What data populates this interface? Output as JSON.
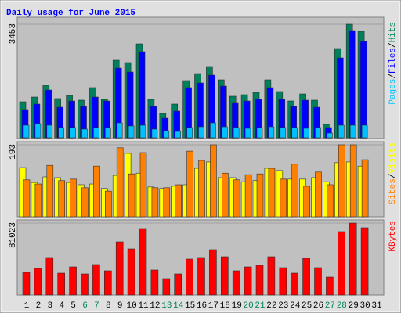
{
  "chart_data": [
    {
      "type": "bar",
      "title": "Daily usage for June 2015",
      "title_color": "#0000ff",
      "separator": "/",
      "ylim": [
        0,
        3453
      ],
      "yticks": [
        3453
      ],
      "series": [
        {
          "name": "Hits",
          "color": "#00805c",
          "values": [
            1095,
            1238,
            1595,
            1191,
            1286,
            1143,
            1524,
            1167,
            2357,
            2286,
            2857,
            1167,
            738,
            1024,
            1738,
            1952,
            2167,
            1762,
            1262,
            1309,
            1381,
            1762,
            1405,
            1119,
            1333,
            1143,
            405,
            2714,
            3453,
            3238,
            null
          ]
        },
        {
          "name": "Files",
          "color": "#0000ff",
          "values": [
            857,
            1024,
            1452,
            929,
            1119,
            952,
            1238,
            1119,
            2119,
            2000,
            2619,
            952,
            595,
            810,
            1524,
            1667,
            1905,
            1571,
            1071,
            1119,
            1167,
            1524,
            1167,
            952,
            1143,
            929,
            310,
            2429,
            3262,
            2929,
            null
          ]
        },
        {
          "name": "Pages",
          "color": "#00c0ff",
          "values": [
            381,
            429,
            381,
            310,
            310,
            262,
            310,
            310,
            452,
            357,
            381,
            262,
            214,
            190,
            310,
            333,
            452,
            333,
            310,
            286,
            310,
            333,
            310,
            310,
            286,
            310,
            143,
            381,
            381,
            381,
            null
          ]
        }
      ]
    },
    {
      "type": "bar",
      "separator": "/",
      "ylim": [
        0,
        193
      ],
      "yticks": [
        193
      ],
      "series": [
        {
          "name": "Visits",
          "color": "#ffff00",
          "values": [
            132,
            92,
            107,
            105,
            92,
            86,
            88,
            76,
            111,
            170,
            117,
            80,
            76,
            82,
            86,
            130,
            147,
            105,
            105,
            94,
            97,
            130,
            124,
            101,
            101,
            105,
            94,
            145,
            147,
            136,
            null
          ]
        },
        {
          "name": "Sites",
          "color": "#ff8000",
          "values": [
            99,
            88,
            138,
            97,
            101,
            78,
            136,
            69,
            185,
            115,
            172,
            78,
            78,
            86,
            176,
            151,
            193,
            117,
            99,
            113,
            115,
            130,
            101,
            141,
            82,
            120,
            86,
            193,
            193,
            153,
            null
          ]
        }
      ]
    },
    {
      "type": "bar",
      "ylim": [
        0,
        81023
      ],
      "yticks": [
        81023
      ],
      "categories": [
        "1",
        "2",
        "3",
        "4",
        "5",
        "6",
        "7",
        "8",
        "9",
        "10",
        "11",
        "12",
        "13",
        "14",
        "15",
        "16",
        "17",
        "18",
        "19",
        "20",
        "21",
        "22",
        "23",
        "24",
        "25",
        "26",
        "27",
        "28",
        "29",
        "30",
        "31"
      ],
      "category_colors": [
        "#000000",
        "#000000",
        "#000000",
        "#000000",
        "#000000",
        "#00805c",
        "#00805c",
        "#000000",
        "#000000",
        "#000000",
        "#000000",
        "#000000",
        "#00805c",
        "#00805c",
        "#000000",
        "#000000",
        "#000000",
        "#000000",
        "#000000",
        "#00805c",
        "#00805c",
        "#000000",
        "#000000",
        "#000000",
        "#000000",
        "#000000",
        "#00805c",
        "#00805c",
        "#000000",
        "#000000",
        "#000000"
      ],
      "series": [
        {
          "name": "KBytes",
          "color": "#ff0000",
          "values": [
            25540,
            29944,
            42274,
            24660,
            31705,
            23779,
            34347,
            27302,
            59888,
            51961,
            74860,
            28182,
            18495,
            23779,
            40512,
            42274,
            51081,
            43154,
            27302,
            31705,
            33467,
            43154,
            30825,
            24660,
            41393,
            30825,
            20256,
            71337,
            81023,
            75740,
            null
          ]
        }
      ]
    }
  ]
}
